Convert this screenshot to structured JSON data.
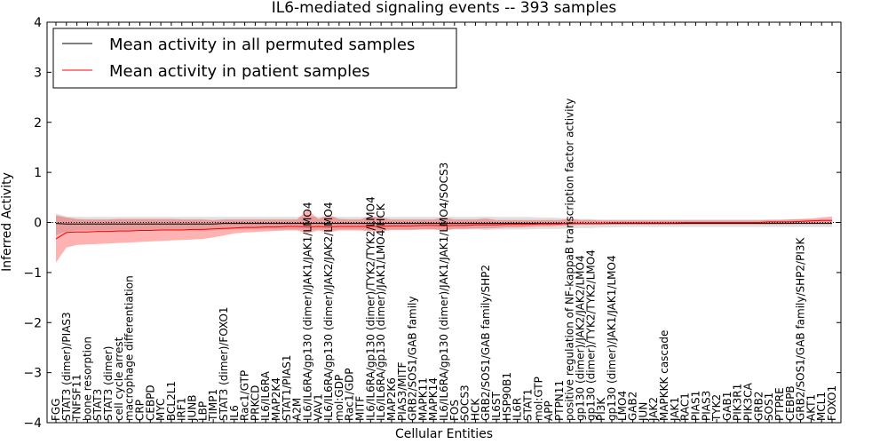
{
  "chart_data": {
    "type": "line",
    "title": "IL6-mediated signaling events -- 393 samples",
    "xlabel": "Cellular Entities",
    "ylabel": "Inferred Activity",
    "ylim": [
      -4,
      4
    ],
    "yticks": [
      "4",
      "3",
      "2",
      "1",
      "0",
      "−1",
      "−2",
      "−3",
      "−4"
    ],
    "legend": {
      "position": "top-left",
      "entries": [
        {
          "name": "Mean activity in all permuted samples",
          "color": "#000000"
        },
        {
          "name": "Mean activity in patient samples",
          "color": "#ff0000"
        }
      ]
    },
    "categories": [
      "FGG",
      "STAT3 (dimer)/PIAS3",
      "TNFSF11",
      "bone resorption",
      "STAT3",
      "STAT3 (dimer)",
      "cell cycle arrest",
      "macrophage differentiation",
      "CRP",
      "CEBPD",
      "MYC",
      "BCL2L1",
      "IRF1",
      "JUNB",
      "LBP",
      "TIMP1",
      "STAT3 (dimer)/FOXO1",
      "IL6",
      "Rac1/GTP",
      "PRKCD",
      "IL6/IL6RA",
      "MAP2K4",
      "STAT1/PIAS1",
      "A2M",
      "IL6/IL6RA/gp130 (dimer)/JAK1/JAK1/LMO4",
      "VAV1",
      "IL6/IL6RA/gp130 (dimer)/JAK2/JAK2/LMO4",
      "mol:GDP",
      "Rac1/GDP",
      "MITF",
      "IL6/IL6RA/gp130 (dimer)/TYK2/TYK2/LMO4",
      "IL6/IL6RA/gp130 (dimer)/JAK1/LMO4/HCK",
      "MAP2K6",
      "PIAS3/MITF",
      "GRB2/SOS1/GAB family",
      "MAPK11",
      "MAPK14",
      "IL6/IL6RA/gp130 (dimer)/JAK1/JAK1/LMO4/SOCS3",
      "FOS",
      "SOCS3",
      "HCK",
      "GRB2/SOS1/GAB family/SHP2",
      "IL6ST",
      "HSP90B1",
      "IL6R",
      "STAT1",
      "mol:GTP",
      "APP",
      "PTPN11",
      "positive regulation of NF-kappaB transcription factor activity",
      "gp130 (dimer)/JAK2/JAK2/LMO4",
      "gp130 (dimer)/TYK2/TYK2/LMO4",
      "PI3K",
      "gp130 (dimer)/JAK1/JAK1/LMO4",
      "LMO4",
      "GAB2",
      "JUN",
      "JAK2",
      "MAPKKK cascade",
      "JAK1",
      "RAC1",
      "PIAS1",
      "PIAS3",
      "TYK2",
      "GAB1",
      "PIK3R1",
      "PIK3CA",
      "GRB2",
      "SOS1",
      "PTPRE",
      "CEBPB",
      "GRB2/SOS1/GAB family/SHP2/PI3K",
      "AKT1",
      "MCL1",
      "FOXO1"
    ],
    "series": [
      {
        "name": "Mean activity in all permuted samples",
        "values": [
          -0.02,
          -0.03,
          -0.03,
          -0.03,
          -0.03,
          -0.03,
          -0.03,
          -0.03,
          -0.03,
          -0.03,
          -0.03,
          -0.03,
          -0.03,
          -0.03,
          -0.03,
          -0.03,
          -0.02,
          -0.02,
          -0.02,
          -0.02,
          -0.02,
          -0.02,
          -0.02,
          -0.02,
          -0.02,
          -0.02,
          -0.02,
          -0.02,
          -0.02,
          -0.02,
          -0.02,
          -0.02,
          -0.02,
          -0.02,
          -0.02,
          -0.02,
          -0.02,
          -0.02,
          -0.02,
          -0.02,
          -0.02,
          -0.02,
          -0.02,
          -0.02,
          -0.02,
          -0.02,
          -0.02,
          -0.02,
          -0.02,
          -0.02,
          -0.02,
          -0.02,
          -0.02,
          -0.02,
          -0.02,
          -0.02,
          -0.02,
          -0.02,
          -0.02,
          -0.02,
          -0.02,
          -0.02,
          -0.02,
          -0.02,
          -0.02,
          -0.02,
          -0.02,
          -0.02,
          -0.02,
          -0.02,
          -0.02,
          -0.02,
          -0.02,
          -0.02,
          -0.02
        ],
        "band_low": [
          -0.25,
          -0.18,
          -0.16,
          -0.16,
          -0.16,
          -0.16,
          -0.16,
          -0.16,
          -0.16,
          -0.16,
          -0.16,
          -0.16,
          -0.16,
          -0.16,
          -0.16,
          -0.16,
          -0.15,
          -0.14,
          -0.14,
          -0.14,
          -0.14,
          -0.14,
          -0.14,
          -0.14,
          -0.15,
          -0.14,
          -0.15,
          -0.14,
          -0.14,
          -0.14,
          -0.15,
          -0.15,
          -0.14,
          -0.14,
          -0.14,
          -0.14,
          -0.14,
          -0.15,
          -0.14,
          -0.14,
          -0.14,
          -0.15,
          -0.14,
          -0.14,
          -0.14,
          -0.14,
          -0.13,
          -0.13,
          -0.13,
          -0.12,
          -0.11,
          -0.11,
          -0.1,
          -0.1,
          -0.09,
          -0.09,
          -0.09,
          -0.09,
          -0.09,
          -0.09,
          -0.09,
          -0.09,
          -0.09,
          -0.09,
          -0.09,
          -0.09,
          -0.09,
          -0.09,
          -0.09,
          -0.09,
          -0.09,
          -0.09,
          -0.09,
          -0.09,
          -0.09
        ],
        "band_high": [
          0.18,
          0.12,
          0.11,
          0.11,
          0.11,
          0.11,
          0.11,
          0.11,
          0.11,
          0.11,
          0.11,
          0.11,
          0.11,
          0.11,
          0.11,
          0.11,
          0.11,
          0.11,
          0.11,
          0.11,
          0.11,
          0.11,
          0.11,
          0.11,
          0.12,
          0.11,
          0.12,
          0.11,
          0.11,
          0.11,
          0.12,
          0.12,
          0.11,
          0.11,
          0.11,
          0.11,
          0.11,
          0.12,
          0.11,
          0.11,
          0.11,
          0.12,
          0.11,
          0.11,
          0.11,
          0.11,
          0.1,
          0.1,
          0.09,
          0.08,
          0.07,
          0.07,
          0.06,
          0.06,
          0.06,
          0.06,
          0.06,
          0.06,
          0.06,
          0.06,
          0.06,
          0.06,
          0.06,
          0.06,
          0.06,
          0.06,
          0.06,
          0.06,
          0.06,
          0.06,
          0.06,
          0.06,
          0.06,
          0.06,
          0.06
        ]
      },
      {
        "name": "Mean activity in patient samples",
        "values": [
          -0.33,
          -0.2,
          -0.19,
          -0.19,
          -0.18,
          -0.18,
          -0.17,
          -0.17,
          -0.16,
          -0.16,
          -0.15,
          -0.15,
          -0.15,
          -0.14,
          -0.14,
          -0.13,
          -0.12,
          -0.11,
          -0.1,
          -0.1,
          -0.09,
          -0.09,
          -0.08,
          -0.08,
          -0.09,
          -0.08,
          -0.09,
          -0.08,
          -0.08,
          -0.08,
          -0.08,
          -0.08,
          -0.07,
          -0.07,
          -0.07,
          -0.06,
          -0.06,
          -0.07,
          -0.06,
          -0.06,
          -0.05,
          -0.05,
          -0.05,
          -0.04,
          -0.04,
          -0.04,
          -0.03,
          -0.03,
          -0.03,
          -0.02,
          -0.02,
          -0.02,
          -0.02,
          -0.01,
          -0.01,
          -0.01,
          -0.01,
          -0.01,
          -0.01,
          -0.01,
          0.0,
          0.0,
          0.0,
          0.0,
          0.0,
          0.0,
          0.0,
          0.0,
          0.01,
          0.01,
          0.01,
          0.02,
          0.03,
          0.04,
          0.04
        ],
        "band_low": [
          -0.8,
          -0.5,
          -0.45,
          -0.44,
          -0.43,
          -0.42,
          -0.41,
          -0.4,
          -0.39,
          -0.38,
          -0.37,
          -0.36,
          -0.35,
          -0.34,
          -0.33,
          -0.3,
          -0.26,
          -0.22,
          -0.2,
          -0.19,
          -0.18,
          -0.17,
          -0.16,
          -0.16,
          -0.22,
          -0.16,
          -0.2,
          -0.16,
          -0.16,
          -0.16,
          -0.18,
          -0.18,
          -0.15,
          -0.15,
          -0.15,
          -0.14,
          -0.14,
          -0.16,
          -0.13,
          -0.13,
          -0.12,
          -0.12,
          -0.11,
          -0.1,
          -0.1,
          -0.09,
          -0.08,
          -0.08,
          -0.07,
          -0.06,
          -0.05,
          -0.05,
          -0.05,
          -0.04,
          -0.04,
          -0.04,
          -0.04,
          -0.04,
          -0.04,
          -0.04,
          -0.03,
          -0.03,
          -0.03,
          -0.03,
          -0.03,
          -0.03,
          -0.03,
          -0.03,
          -0.03,
          -0.03,
          -0.03,
          -0.02,
          -0.02,
          -0.02,
          -0.02
        ],
        "band_high": [
          0.14,
          0.1,
          0.07,
          0.06,
          0.06,
          0.06,
          0.07,
          0.07,
          0.07,
          0.07,
          0.07,
          0.07,
          0.06,
          0.06,
          0.06,
          0.05,
          0.06,
          0.06,
          0.06,
          0.06,
          0.06,
          0.06,
          0.06,
          0.06,
          0.25,
          0.07,
          0.15,
          0.07,
          0.06,
          0.06,
          0.12,
          0.1,
          0.06,
          0.06,
          0.06,
          0.06,
          0.06,
          0.1,
          0.06,
          0.06,
          0.06,
          0.08,
          0.05,
          0.05,
          0.05,
          0.05,
          0.05,
          0.05,
          0.05,
          0.07,
          0.05,
          0.05,
          0.04,
          0.04,
          0.04,
          0.04,
          0.04,
          0.04,
          0.04,
          0.04,
          0.04,
          0.04,
          0.04,
          0.04,
          0.04,
          0.04,
          0.04,
          0.04,
          0.05,
          0.05,
          0.06,
          0.07,
          0.08,
          0.1,
          0.12
        ]
      }
    ],
    "grid": false
  }
}
